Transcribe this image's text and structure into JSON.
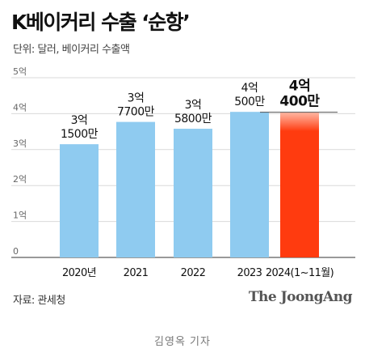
{
  "header": {
    "title": "K베이커리 수출 ‘순항’",
    "unit": "단위: 달러, 베이커리 수출액"
  },
  "footer": {
    "source": "자료: 관세청",
    "brand": "The JoongAng",
    "byline": "김영옥 기자"
  },
  "colors": {
    "bar": "#8FCBF0",
    "highlight": "#FF3B0F",
    "grid": "#d9d9d9",
    "axis": "#333333"
  },
  "chart_data": {
    "type": "bar",
    "title": "K베이커리 수출 ‘순항’",
    "categories": [
      "2020년",
      "2021",
      "2022",
      "2023",
      "2024(1~11월)"
    ],
    "values": [
      315000000,
      377000000,
      358000000,
      405000000,
      404000000
    ],
    "value_labels": [
      [
        "3억",
        "1500만"
      ],
      [
        "3억",
        "7700만"
      ],
      [
        "3억",
        "5800만"
      ],
      [
        "4억",
        "500만"
      ],
      [
        "4억",
        "400만"
      ]
    ],
    "highlight_index": 4,
    "ylim": [
      0,
      500000000
    ],
    "yticks": [
      0,
      100000000,
      200000000,
      300000000,
      400000000,
      500000000
    ],
    "ytick_labels": [
      "0",
      "1억",
      "2억",
      "3억",
      "4억",
      "5억"
    ],
    "grid": true
  }
}
